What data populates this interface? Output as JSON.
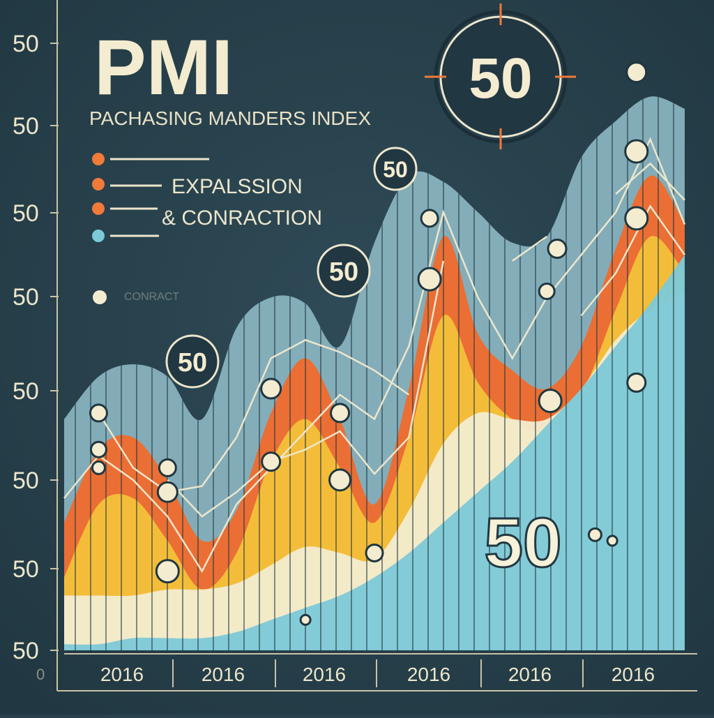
{
  "chart_data": {
    "type": "area",
    "title": "PMI",
    "subtitle": "PACHASING MANDERS INDEX",
    "y_tick_labels": [
      "50",
      "50",
      "50",
      "50",
      "50",
      "50",
      "50",
      "50"
    ],
    "extra_y_label": "0",
    "x_tick_labels": [
      "2016",
      "2016",
      "2016",
      "2016",
      "2016",
      "2016"
    ],
    "x": [
      0,
      1,
      2,
      3,
      4,
      5,
      6,
      7,
      8,
      9,
      10,
      11,
      12,
      13,
      14,
      15,
      16,
      17,
      18
    ],
    "ylim": [
      0,
      100
    ],
    "grid": false,
    "series": [
      {
        "color": "#8db8c4",
        "values": [
          38,
          45,
          47,
          45,
          38,
          53,
          58,
          57,
          50,
          67,
          78,
          77,
          72,
          67,
          68,
          81,
          87,
          91,
          89
        ]
      },
      {
        "color": "#f06a2c",
        "values": [
          21,
          33,
          35,
          28,
          18,
          23,
          39,
          48,
          38,
          24,
          43,
          68,
          52,
          46,
          43,
          50,
          66,
          78,
          70
        ]
      },
      {
        "color": "#f4c13a",
        "values": [
          12,
          24,
          25,
          18,
          10,
          16,
          31,
          38,
          30,
          21,
          35,
          55,
          44,
          38,
          36,
          42,
          56,
          68,
          62
        ]
      },
      {
        "color": "#f2ecd0",
        "values": [
          9,
          9,
          9,
          10,
          10,
          11,
          14,
          17,
          16,
          15,
          23,
          34,
          39,
          38,
          38,
          43,
          51,
          56,
          59
        ]
      },
      {
        "color": "#7cc9d8",
        "values": [
          1,
          1,
          2,
          2,
          2,
          3,
          5,
          7,
          9,
          12,
          16,
          21,
          26,
          31,
          37,
          43,
          50,
          57,
          65
        ]
      }
    ],
    "line_series": [
      {
        "color": "#ece6cc",
        "values": [
          null,
          39,
          30,
          26,
          27,
          35,
          48,
          51,
          49,
          46,
          42,
          null,
          null,
          64,
          68,
          null,
          75,
          80,
          74
        ]
      },
      {
        "color": "#ece6cc",
        "values": [
          25,
          32,
          28,
          22,
          13,
          24,
          30,
          36,
          42,
          38,
          50,
          72,
          58,
          48,
          58,
          65,
          72,
          84,
          70
        ]
      },
      {
        "color": "#ece6cc",
        "values": [
          null,
          37,
          null,
          28,
          22,
          26,
          31,
          33,
          36,
          29,
          35,
          64,
          null,
          null,
          null,
          55,
          62,
          73,
          65
        ]
      }
    ],
    "point_markers": [
      {
        "x": 1,
        "y": 39,
        "r": 12
      },
      {
        "x": 1,
        "y": 33,
        "r": 11
      },
      {
        "x": 1,
        "y": 30,
        "r": 9
      },
      {
        "x": 3,
        "y": 30,
        "r": 12
      },
      {
        "x": 3,
        "y": 26,
        "r": 14
      },
      {
        "x": 3,
        "y": 13,
        "r": 16
      },
      {
        "x": 6,
        "y": 43,
        "r": 14
      },
      {
        "x": 6,
        "y": 31,
        "r": 13
      },
      {
        "x": 8,
        "y": 39,
        "r": 13
      },
      {
        "x": 8,
        "y": 28,
        "r": 15
      },
      {
        "x": 9,
        "y": 16,
        "r": 12
      },
      {
        "x": 10.6,
        "y": 71,
        "r": 12
      },
      {
        "x": 10.6,
        "y": 61,
        "r": 16
      },
      {
        "x": 14,
        "y": 59,
        "r": 11
      },
      {
        "x": 14.3,
        "y": 66,
        "r": 13
      },
      {
        "x": 14.1,
        "y": 41,
        "r": 16
      },
      {
        "x": 16.6,
        "y": 95,
        "r": 14
      },
      {
        "x": 16.6,
        "y": 82,
        "r": 16
      },
      {
        "x": 16.6,
        "y": 71,
        "r": 16
      },
      {
        "x": 16.6,
        "y": 44,
        "r": 13
      },
      {
        "x": 15.4,
        "y": 19,
        "r": 9
      },
      {
        "x": 15.9,
        "y": 18,
        "r": 7
      },
      {
        "x": 7,
        "y": 5,
        "r": 7
      }
    ],
    "badges": [
      {
        "label": "50",
        "role": "large-badge"
      },
      {
        "label": "50",
        "role": "badge"
      },
      {
        "label": "50",
        "role": "badge"
      },
      {
        "label": "50",
        "role": "badge"
      },
      {
        "label": "50",
        "role": "floating-label"
      }
    ],
    "legend": {
      "placement": "top-left",
      "entries": [
        {
          "color": "#f07a3a",
          "label": ""
        },
        {
          "color": "#f07a3a",
          "label": "EXPALSSION"
        },
        {
          "color": "#f07a3a",
          "label": "& CONRACTION"
        },
        {
          "color": "#7cc9d8",
          "label": ""
        },
        {
          "color": "#f4ecd0",
          "label": "CONRACT"
        }
      ]
    }
  }
}
